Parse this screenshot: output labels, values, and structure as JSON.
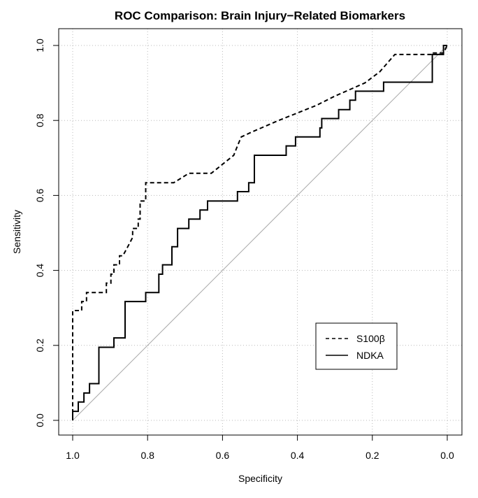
{
  "chart_data": {
    "type": "line",
    "title": "ROC Comparison: Brain Injury−Related Biomarkers",
    "xlabel": "Specificity",
    "ylabel": "Sensitivity",
    "xlim": [
      1.0,
      0.0
    ],
    "ylim": [
      0.0,
      1.0
    ],
    "x_reversed": true,
    "xticks": [
      "1.0",
      "0.8",
      "0.6",
      "0.4",
      "0.2",
      "0.0"
    ],
    "yticks": [
      "0.0",
      "0.2",
      "0.4",
      "0.6",
      "0.8",
      "1.0"
    ],
    "grid": true,
    "grid_style": "dotted",
    "legend_position": "bottom-right",
    "reference_line": {
      "from": [
        1.0,
        0.0
      ],
      "to": [
        0.0,
        1.0
      ],
      "color": "#aaaaaa"
    },
    "series": [
      {
        "name": "S100β",
        "line_style": "dashed",
        "color": "#000000",
        "points": [
          [
            1.0,
            0.0
          ],
          [
            1.0,
            0.293
          ],
          [
            0.976,
            0.293
          ],
          [
            0.976,
            0.317
          ],
          [
            0.963,
            0.317
          ],
          [
            0.963,
            0.341
          ],
          [
            0.91,
            0.341
          ],
          [
            0.91,
            0.366
          ],
          [
            0.898,
            0.366
          ],
          [
            0.898,
            0.39
          ],
          [
            0.89,
            0.39
          ],
          [
            0.89,
            0.415
          ],
          [
            0.875,
            0.415
          ],
          [
            0.875,
            0.439
          ],
          [
            0.866,
            0.439
          ],
          [
            0.853,
            0.463
          ],
          [
            0.84,
            0.488
          ],
          [
            0.84,
            0.512
          ],
          [
            0.825,
            0.512
          ],
          [
            0.825,
            0.537
          ],
          [
            0.82,
            0.537
          ],
          [
            0.82,
            0.585
          ],
          [
            0.805,
            0.585
          ],
          [
            0.805,
            0.634
          ],
          [
            0.73,
            0.634
          ],
          [
            0.69,
            0.659
          ],
          [
            0.63,
            0.659
          ],
          [
            0.6,
            0.683
          ],
          [
            0.57,
            0.707
          ],
          [
            0.56,
            0.732
          ],
          [
            0.55,
            0.756
          ],
          [
            0.52,
            0.77
          ],
          [
            0.45,
            0.8
          ],
          [
            0.35,
            0.84
          ],
          [
            0.3,
            0.865
          ],
          [
            0.22,
            0.9
          ],
          [
            0.18,
            0.93
          ],
          [
            0.14,
            0.976
          ],
          [
            0.04,
            0.976
          ],
          [
            0.04,
            0.98
          ],
          [
            0.01,
            0.98
          ],
          [
            0.0,
            1.0
          ]
        ]
      },
      {
        "name": "NDKA",
        "line_style": "solid",
        "color": "#000000",
        "points": [
          [
            1.0,
            0.0
          ],
          [
            1.0,
            0.024
          ],
          [
            0.985,
            0.024
          ],
          [
            0.985,
            0.049
          ],
          [
            0.97,
            0.049
          ],
          [
            0.97,
            0.073
          ],
          [
            0.955,
            0.073
          ],
          [
            0.955,
            0.098
          ],
          [
            0.93,
            0.098
          ],
          [
            0.93,
            0.195
          ],
          [
            0.89,
            0.195
          ],
          [
            0.89,
            0.22
          ],
          [
            0.86,
            0.22
          ],
          [
            0.86,
            0.317
          ],
          [
            0.805,
            0.317
          ],
          [
            0.805,
            0.341
          ],
          [
            0.77,
            0.341
          ],
          [
            0.77,
            0.39
          ],
          [
            0.76,
            0.39
          ],
          [
            0.76,
            0.415
          ],
          [
            0.735,
            0.415
          ],
          [
            0.735,
            0.463
          ],
          [
            0.72,
            0.463
          ],
          [
            0.72,
            0.512
          ],
          [
            0.69,
            0.512
          ],
          [
            0.69,
            0.537
          ],
          [
            0.66,
            0.537
          ],
          [
            0.66,
            0.561
          ],
          [
            0.64,
            0.561
          ],
          [
            0.64,
            0.585
          ],
          [
            0.56,
            0.585
          ],
          [
            0.56,
            0.61
          ],
          [
            0.53,
            0.61
          ],
          [
            0.53,
            0.634
          ],
          [
            0.515,
            0.634
          ],
          [
            0.515,
            0.707
          ],
          [
            0.43,
            0.707
          ],
          [
            0.43,
            0.732
          ],
          [
            0.405,
            0.732
          ],
          [
            0.405,
            0.756
          ],
          [
            0.34,
            0.756
          ],
          [
            0.34,
            0.78
          ],
          [
            0.335,
            0.78
          ],
          [
            0.335,
            0.805
          ],
          [
            0.29,
            0.805
          ],
          [
            0.29,
            0.829
          ],
          [
            0.26,
            0.829
          ],
          [
            0.26,
            0.854
          ],
          [
            0.245,
            0.854
          ],
          [
            0.245,
            0.878
          ],
          [
            0.17,
            0.878
          ],
          [
            0.17,
            0.902
          ],
          [
            0.04,
            0.902
          ],
          [
            0.04,
            0.976
          ],
          [
            0.01,
            0.976
          ],
          [
            0.01,
            1.0
          ],
          [
            0.0,
            1.0
          ]
        ]
      }
    ]
  }
}
